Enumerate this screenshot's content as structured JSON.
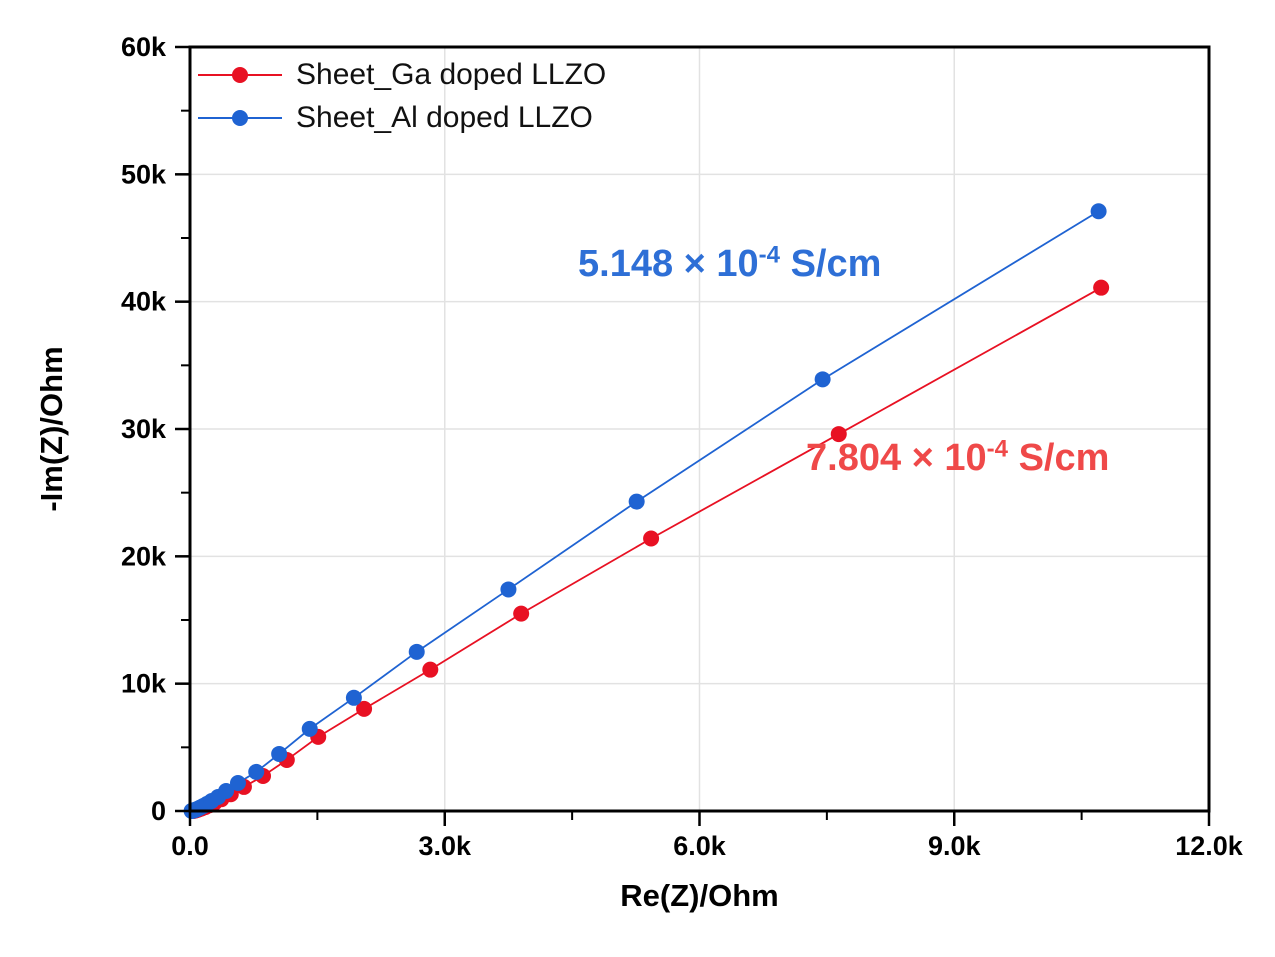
{
  "chart_data": {
    "type": "scatter",
    "title": "",
    "xlabel": "Re(Z)/Ohm",
    "ylabel": "-Im(Z)/Ohm",
    "xlim": [
      0,
      12000
    ],
    "ylim": [
      0,
      60000
    ],
    "grid": true,
    "grid_color": "#e2e2e2",
    "frame_color": "#000000",
    "legend_position": "top-left",
    "x_ticks": [
      {
        "v": 0,
        "label": "0.0"
      },
      {
        "v": 3000,
        "label": "3.0k"
      },
      {
        "v": 6000,
        "label": "6.0k"
      },
      {
        "v": 9000,
        "label": "9.0k"
      },
      {
        "v": 12000,
        "label": "12.0k"
      }
    ],
    "x_minor_ticks": [
      1500,
      4500,
      7500,
      10500
    ],
    "y_ticks": [
      {
        "v": 0,
        "label": "0"
      },
      {
        "v": 10000,
        "label": "10k"
      },
      {
        "v": 20000,
        "label": "20k"
      },
      {
        "v": 30000,
        "label": "30k"
      },
      {
        "v": 40000,
        "label": "40k"
      },
      {
        "v": 50000,
        "label": "50k"
      },
      {
        "v": 60000,
        "label": "60k"
      }
    ],
    "y_minor_ticks": [
      5000,
      15000,
      25000,
      35000,
      45000,
      55000
    ],
    "series": [
      {
        "name": "Sheet_Ga doped LLZO",
        "color": "#e81123",
        "x": [
          36,
          45,
          56,
          70,
          88,
          110,
          140,
          180,
          230,
          290,
          370,
          480,
          635,
          860,
          1140,
          1510,
          2050,
          2830,
          3900,
          5430,
          7640,
          10730
        ],
        "y": [
          6,
          16,
          32,
          55,
          90,
          140,
          210,
          310,
          450,
          650,
          930,
          1320,
          1890,
          2750,
          4010,
          5820,
          8020,
          11100,
          15500,
          21400,
          29600,
          41100
        ]
      },
      {
        "name": "Sheet_Al doped LLZO",
        "color": "#1f63d2",
        "x": [
          19,
          24,
          30,
          38,
          48,
          60,
          75,
          95,
          120,
          155,
          200,
          255,
          330,
          425,
          565,
          780,
          1050,
          1410,
          1930,
          2670,
          3750,
          5260,
          7450,
          10700
        ],
        "y": [
          5,
          10,
          20,
          35,
          55,
          85,
          125,
          185,
          270,
          390,
          560,
          790,
          1100,
          1570,
          2200,
          3070,
          4480,
          6450,
          8890,
          12500,
          17400,
          24300,
          33900,
          47100
        ]
      }
    ],
    "annotations": [
      {
        "prefix": "5.148 × 10",
        "sup": "-4",
        "suffix": " S/cm",
        "color": "#2e6fd6"
      },
      {
        "prefix": "7.804 × 10",
        "sup": "-4",
        "suffix": " S/cm",
        "color": "#ef4949"
      }
    ]
  }
}
